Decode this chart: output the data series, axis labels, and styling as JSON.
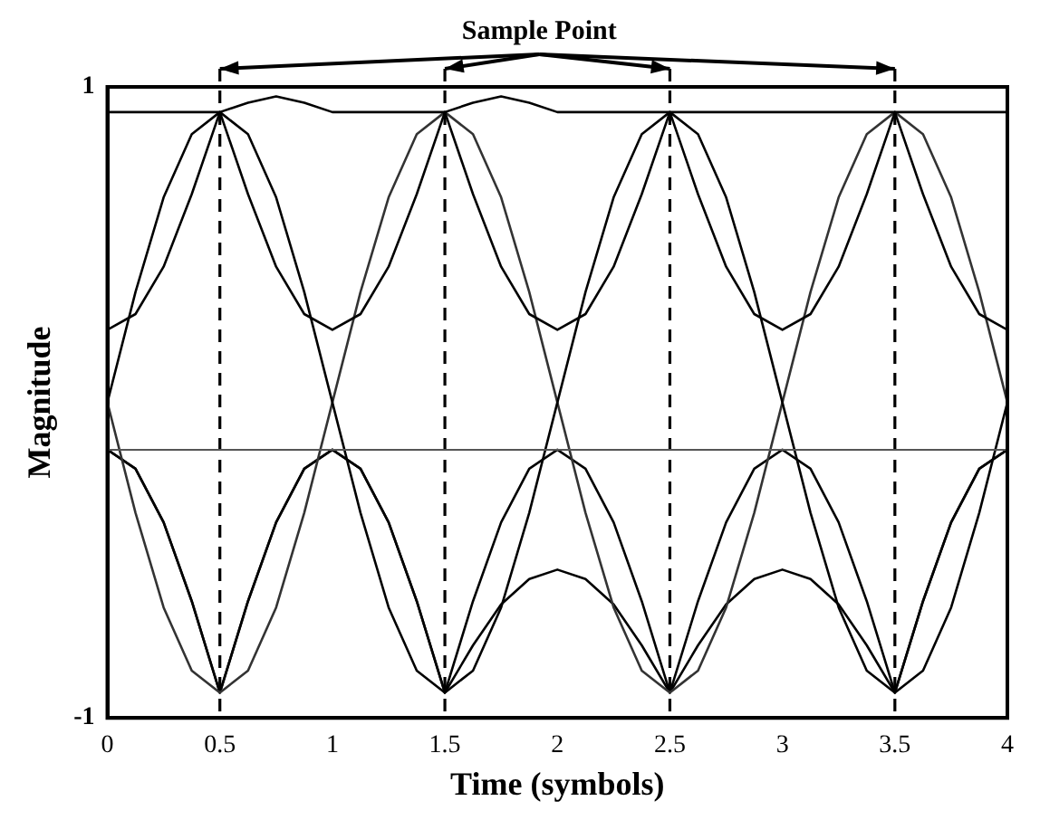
{
  "chart_data": {
    "type": "line",
    "xlabel": "Time (symbols)",
    "ylabel": "Magnitude",
    "x": [
      0,
      0.125,
      0.25,
      0.375,
      0.5,
      0.625,
      0.75,
      0.875,
      1,
      1.125,
      1.25,
      1.375,
      1.5,
      1.625,
      1.75,
      1.875,
      2,
      2.125,
      2.25,
      2.375,
      2.5,
      2.625,
      2.75,
      2.875,
      3,
      3.125,
      3.25,
      3.375,
      3.5,
      3.625,
      3.75,
      3.875,
      4
    ],
    "series": [
      {
        "color": "#000000",
        "values": [
          0.92,
          0.92,
          0.92,
          0.92,
          0.92,
          0.95,
          0.97,
          0.95,
          0.92,
          0.92,
          0.92,
          0.92,
          0.92,
          0.95,
          0.97,
          0.95,
          0.92,
          0.92,
          0.92,
          0.92,
          0.92,
          0.92,
          0.92,
          0.92,
          0.92,
          0.92,
          0.92,
          0.92,
          0.92,
          0.92,
          0.92,
          0.92,
          0.92
        ]
      },
      {
        "color": "#000000",
        "values": [
          0.23,
          0.28,
          0.43,
          0.66,
          0.92,
          0.66,
          0.43,
          0.28,
          0.23,
          0.28,
          0.43,
          0.66,
          0.92,
          0.66,
          0.43,
          0.28,
          0.23,
          0.28,
          0.43,
          0.66,
          0.92,
          0.66,
          0.43,
          0.28,
          0.23,
          0.28,
          0.43,
          0.66,
          0.92,
          0.66,
          0.43,
          0.28,
          0.23
        ]
      },
      {
        "color": "#000000",
        "values": [
          0,
          0.35,
          0.65,
          0.85,
          0.92,
          0.85,
          0.65,
          0.35,
          0,
          -0.35,
          -0.65,
          -0.85,
          -0.92,
          -0.85,
          -0.65,
          -0.35,
          0,
          0.35,
          0.65,
          0.85,
          0.92,
          0.85,
          0.65,
          0.35,
          0,
          -0.35,
          -0.65,
          -0.85,
          -0.92,
          -0.85,
          -0.65,
          -0.35,
          0
        ]
      },
      {
        "color": "#333333",
        "values": [
          0,
          -0.35,
          -0.65,
          -0.85,
          -0.92,
          -0.85,
          -0.65,
          -0.35,
          0,
          0.35,
          0.65,
          0.85,
          0.92,
          0.85,
          0.65,
          0.35,
          0,
          -0.35,
          -0.65,
          -0.85,
          -0.92,
          -0.85,
          -0.65,
          -0.35,
          0,
          0.35,
          0.65,
          0.85,
          0.92,
          0.85,
          0.65,
          0.35,
          0
        ]
      },
      {
        "color": "#000000",
        "values": [
          -0.15,
          -0.21,
          -0.38,
          -0.63,
          -0.92,
          -0.63,
          -0.38,
          -0.21,
          -0.15,
          -0.21,
          -0.38,
          -0.63,
          -0.92,
          -0.63,
          -0.38,
          -0.21,
          -0.15,
          -0.21,
          -0.38,
          -0.63,
          -0.92,
          -0.63,
          -0.38,
          -0.21,
          -0.15,
          -0.21,
          -0.38,
          -0.63,
          -0.92,
          -0.63,
          -0.38,
          -0.21,
          -0.15
        ]
      },
      {
        "color": "#000000",
        "values": [
          -0.15,
          -0.21,
          -0.38,
          -0.63,
          -0.92,
          -0.63,
          -0.38,
          -0.21,
          -0.15,
          -0.21,
          -0.38,
          -0.63,
          -0.92,
          -0.77,
          -0.64,
          -0.56,
          -0.53,
          -0.56,
          -0.64,
          -0.77,
          -0.92,
          -0.77,
          -0.64,
          -0.56,
          -0.53,
          -0.56,
          -0.64,
          -0.77,
          -0.92,
          -0.63,
          -0.38,
          -0.21,
          -0.15
        ]
      }
    ],
    "xlim": [
      0,
      4
    ],
    "xticks": [
      0,
      0.5,
      1,
      1.5,
      2,
      2.5,
      3,
      3.5,
      4
    ],
    "ylim": [
      -1,
      1
    ],
    "yticks": [
      -1,
      1
    ],
    "ref_lines": [
      {
        "axis": "x",
        "value": 0.5,
        "color": "#000000",
        "line_style": "dashed"
      },
      {
        "axis": "x",
        "value": 1.5,
        "color": "#000000",
        "line_style": "dashed"
      },
      {
        "axis": "x",
        "value": 2.5,
        "color": "#000000",
        "line_style": "dashed"
      },
      {
        "axis": "x",
        "value": 3.5,
        "color": "#000000",
        "line_style": "dashed"
      },
      {
        "axis": "y",
        "value": -0.15,
        "color": "#555555",
        "line_style": "solid"
      }
    ],
    "annotations": [
      "Sample Point"
    ],
    "grid": false,
    "legend": false,
    "marker": "none",
    "line_style": "solid"
  }
}
